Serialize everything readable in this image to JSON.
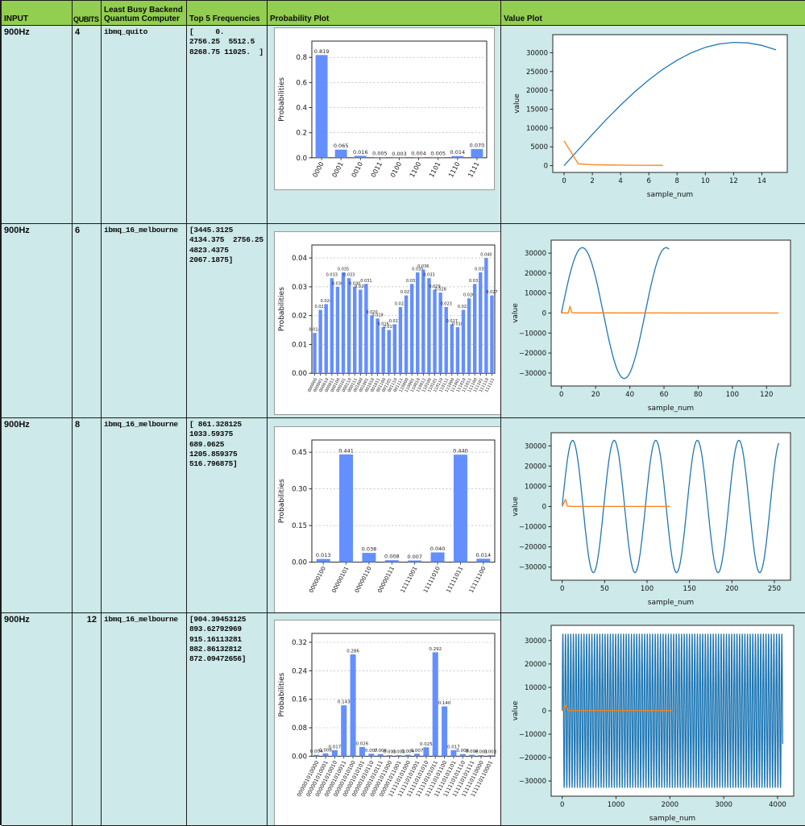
{
  "header": {
    "input": "INPUT",
    "qubits": "QUBITS",
    "backend": "Least Busy Backend\nQuantum Computer",
    "frequencies": "Top 5 Frequencies",
    "probability_plot": "Probability Plot",
    "value_plot": "Value Plot"
  },
  "colors": {
    "header_bg": "#92ce50",
    "cell_bg": "#cde9e9",
    "bar": "#648fff",
    "signal_line": "#1f77b4",
    "frequency_line": "#ff7f0e",
    "grid_border": "#1c1c1c"
  },
  "rows": [
    {
      "input": "900Hz",
      "qubits": "4",
      "backend": "ibmq_quito",
      "frequencies": "[     0.\n2756.25  5512.5\n8268.75 11025.  ]"
    },
    {
      "input": "900Hz",
      "qubits": "6",
      "backend": "ibmq_16_melbourne",
      "frequencies": "[3445.3125\n4134.375  2756.25\n4823.4375\n2067.1875]"
    },
    {
      "input": "900Hz",
      "qubits": "8",
      "backend": "ibmq_16_melbourne",
      "frequencies": "[ 861.328125\n1033.59375\n689.0625\n1205.859375\n516.796875]"
    },
    {
      "input": "900Hz",
      "qubits": "12",
      "backend": "ibmq_16_melbourne",
      "frequencies": "[904.39453125\n893.62792969\n915.16113281\n882.86132812\n872.09472656]"
    }
  ],
  "chart_data": [
    {
      "type": "bar",
      "row": 1,
      "ylabel": "Probabilities",
      "categories": [
        "0000",
        "0001",
        "0010",
        "0011",
        "0100",
        "1100",
        "1101",
        "1110",
        "1111"
      ],
      "values": [
        0.819,
        0.065,
        0.016,
        0.005,
        0.003,
        0.004,
        0.005,
        0.014,
        0.07
      ],
      "yticks": [
        0,
        0.2,
        0.4,
        0.6,
        0.8
      ],
      "ytick_labels": [
        "0.0",
        "0.2",
        "0.4",
        "0.6",
        "0.8"
      ],
      "ylim": [
        0,
        0.93
      ],
      "bar_color": "#648fff",
      "grid": "dashed-horizontal",
      "value_font": 6.5,
      "cat_font": 8
    },
    {
      "type": "line",
      "row": 1,
      "xlabel": "sample_num",
      "ylabel": "value",
      "xlim": [
        -0.8,
        15.8
      ],
      "ylim": [
        -1800,
        34800
      ],
      "xticks": [
        0,
        2,
        4,
        6,
        8,
        10,
        12,
        14
      ],
      "yticks": [
        0,
        5000,
        10000,
        15000,
        20000,
        25000,
        30000
      ],
      "grid": "off",
      "legend": "none",
      "series": [
        {
          "name": "signal",
          "color": "#1f77b4",
          "sine": {
            "amplitude": 32767,
            "period": 49,
            "n": 16
          }
        },
        {
          "name": "frequencies",
          "color": "#ff7f0e",
          "points": [
            [
              0,
              6600
            ],
            [
              1,
              500
            ],
            [
              2,
              260
            ],
            [
              3,
              180
            ],
            [
              4,
              140
            ],
            [
              5,
              110
            ],
            [
              6,
              95
            ],
            [
              7,
              85
            ]
          ]
        }
      ]
    },
    {
      "type": "bar",
      "row": 2,
      "ylabel": "Probabilities",
      "categories": [
        "000000",
        "000001",
        "000010",
        "000011",
        "000100",
        "000101",
        "000110",
        "000111",
        "001000",
        "001001",
        "001010",
        "001011",
        "001100",
        "001101",
        "001110",
        "001111",
        "110000",
        "110001",
        "110010",
        "110011",
        "110100",
        "110101",
        "110110",
        "110111",
        "111000",
        "111001",
        "111010",
        "111011",
        "111100",
        "111101",
        "111110",
        "111111"
      ],
      "values": [
        0.014,
        0.022,
        0.024,
        0.033,
        0.03,
        0.035,
        0.033,
        0.03,
        0.029,
        0.031,
        0.02,
        0.019,
        0.016,
        0.015,
        0.017,
        0.023,
        0.027,
        0.031,
        0.035,
        0.036,
        0.033,
        0.029,
        0.028,
        0.023,
        0.017,
        0.016,
        0.022,
        0.026,
        0.031,
        0.035,
        0.04,
        0.027
      ],
      "yticks": [
        0,
        0.01,
        0.02,
        0.03,
        0.04
      ],
      "ytick_labels": [
        "0.00",
        "0.01",
        "0.02",
        "0.03",
        "0.04"
      ],
      "ylim": [
        0,
        0.0445
      ],
      "bar_color": "#648fff",
      "grid": "dashed-horizontal",
      "value_font": 5,
      "cat_font": 5
    },
    {
      "type": "line",
      "row": 2,
      "xlabel": "sample_num",
      "ylabel": "value",
      "xlim": [
        -6,
        134
      ],
      "ylim": [
        -36500,
        36500
      ],
      "xticks": [
        0,
        20,
        40,
        60,
        80,
        100,
        120
      ],
      "yticks": [
        -30000,
        -20000,
        -10000,
        0,
        10000,
        20000,
        30000
      ],
      "grid": "off",
      "legend": "none",
      "series": [
        {
          "name": "signal",
          "color": "#1f77b4",
          "sine": {
            "amplitude": 32767,
            "period": 49,
            "n": 64
          }
        },
        {
          "name": "frequencies",
          "color": "#ff7f0e",
          "points": [
            [
              0,
              80
            ],
            [
              4,
              100
            ],
            [
              5,
              3400
            ],
            [
              6,
              250
            ],
            [
              9,
              80
            ],
            [
              127,
              50
            ]
          ]
        }
      ]
    },
    {
      "type": "bar",
      "row": 3,
      "ylabel": "Probabilities",
      "categories": [
        "00000100",
        "00000101",
        "00000110",
        "00000111",
        "11111001",
        "11111010",
        "11111011",
        "11111100"
      ],
      "values": [
        0.013,
        0.441,
        0.038,
        0.008,
        0.007,
        0.04,
        0.44,
        0.014
      ],
      "yticks": [
        0,
        0.15,
        0.3,
        0.45
      ],
      "ytick_labels": [
        "0.00",
        "0.15",
        "0.30",
        "0.45"
      ],
      "ylim": [
        0,
        0.5
      ],
      "bar_color": "#648fff",
      "grid": "dashed-horizontal",
      "value_font": 6.5,
      "cat_font": 7
    },
    {
      "type": "line",
      "row": 3,
      "xlabel": "sample_num",
      "ylabel": "value",
      "xlim": [
        -13,
        269
      ],
      "ylim": [
        -36500,
        36500
      ],
      "xticks": [
        0,
        50,
        100,
        150,
        200,
        250
      ],
      "yticks": [
        -30000,
        -20000,
        -10000,
        0,
        10000,
        20000,
        30000
      ],
      "grid": "off",
      "legend": "none",
      "series": [
        {
          "name": "signal",
          "color": "#1f77b4",
          "sine": {
            "amplitude": 32767,
            "period": 49,
            "n": 256
          }
        },
        {
          "name": "frequencies",
          "color": "#ff7f0e",
          "points": [
            [
              0,
              90
            ],
            [
              4,
              3500
            ],
            [
              6,
              250
            ],
            [
              10,
              80
            ],
            [
              127,
              50
            ]
          ]
        }
      ]
    },
    {
      "type": "bar",
      "row": 4,
      "ylabel": "Probabilities",
      "categories": [
        "000001010000",
        "000001010001",
        "000001010010",
        "000001010011",
        "000001010100",
        "000001010101",
        "000001010110",
        "000001010111",
        "000001011000",
        "000001011001",
        "111110101000",
        "111110101001",
        "111110101010",
        "111110101011",
        "111110101100",
        "111110101101",
        "111110101110",
        "111110101111",
        "111110110000",
        "111110110001"
      ],
      "values": [
        0.004,
        0.008,
        0.017,
        0.143,
        0.286,
        0.026,
        0.007,
        0.006,
        0.003,
        0.003,
        0.004,
        0.007,
        0.025,
        0.292,
        0.14,
        0.017,
        0.006,
        0.004,
        0.003,
        0.003
      ],
      "yticks": [
        0,
        0.08,
        0.16,
        0.24,
        0.32
      ],
      "ytick_labels": [
        "0.00",
        "0.08",
        "0.16",
        "0.24",
        "0.32"
      ],
      "ylim": [
        0,
        0.345
      ],
      "bar_color": "#648fff",
      "grid": "dashed-horizontal",
      "value_font": 5.5,
      "cat_font": 6.5
    },
    {
      "type": "line",
      "row": 4,
      "xlabel": "sample_num",
      "ylabel": "value",
      "xlim": [
        -205,
        4300
      ],
      "ylim": [
        -36500,
        36500
      ],
      "xticks": [
        0,
        1000,
        2000,
        3000,
        4000
      ],
      "yticks": [
        -30000,
        -20000,
        -10000,
        0,
        10000,
        20000,
        30000
      ],
      "grid": "off",
      "legend": "none",
      "series": [
        {
          "name": "signal",
          "color": "#1f77b4",
          "sine": {
            "amplitude": 32767,
            "period": 49,
            "n": 4096
          }
        },
        {
          "name": "frequencies",
          "color": "#ff7f0e",
          "points": [
            [
              0,
              100
            ],
            [
              60,
              2500
            ],
            [
              110,
              100
            ],
            [
              2048,
              60
            ]
          ]
        }
      ]
    }
  ]
}
